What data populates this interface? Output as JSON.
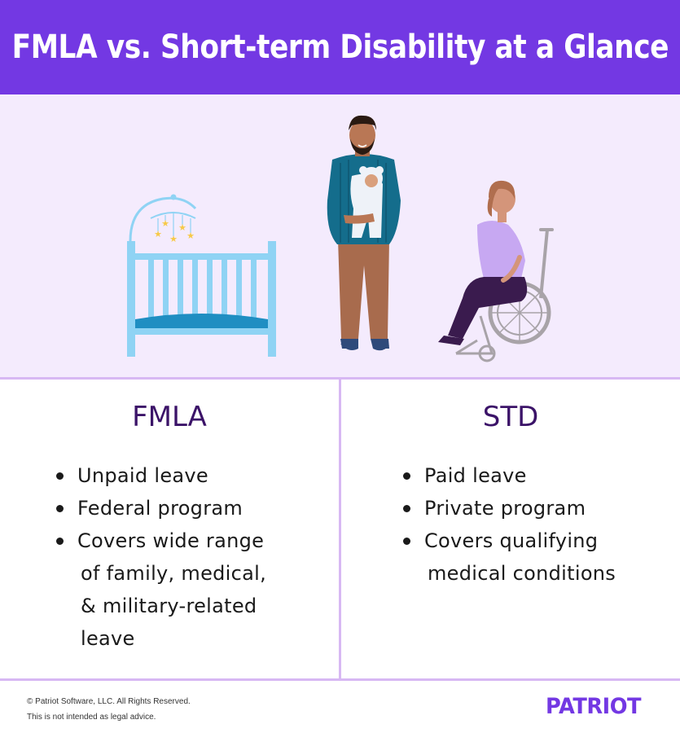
{
  "header": {
    "title": "FMLA vs. Short-term Disability at a Glance"
  },
  "colors": {
    "accent": "#7338e3",
    "illustration_bg": "#f4ebfd",
    "divider": "#d7b8f3",
    "heading": "#3b1368"
  },
  "illustration": {
    "icons": [
      "crib-icon",
      "parent-holding-baby-icon",
      "person-in-wheelchair-icon"
    ]
  },
  "columns": [
    {
      "heading": "FMLA",
      "items": [
        {
          "line1": "Unpaid leave",
          "rest": []
        },
        {
          "line1": "Federal program",
          "rest": []
        },
        {
          "line1": "Covers wide range",
          "rest": [
            "of family, medical,",
            "& military-related",
            "leave"
          ]
        }
      ]
    },
    {
      "heading": "STD",
      "items": [
        {
          "line1": "Paid leave",
          "rest": []
        },
        {
          "line1": "Private program",
          "rest": []
        },
        {
          "line1": "Covers qualifying",
          "rest": [
            "medical conditions"
          ]
        }
      ]
    }
  ],
  "footer": {
    "copyright": "© Patriot Software, LLC. All Rights Reserved.",
    "disclaimer": "This is not intended as legal advice.",
    "logo": "PATRIOT"
  }
}
